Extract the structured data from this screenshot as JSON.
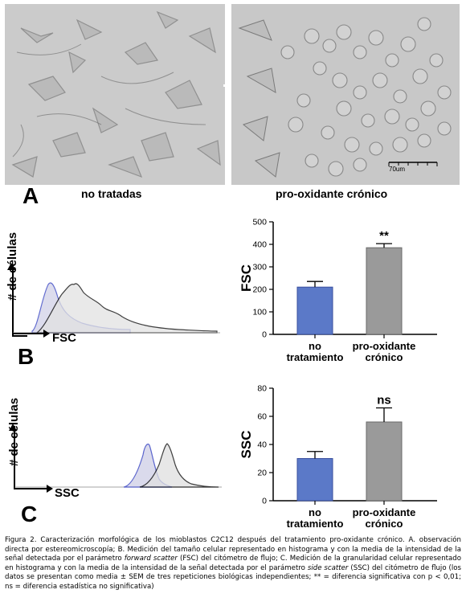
{
  "panel_a": {
    "letter": "A",
    "left_label": "no tratadas",
    "right_label": "pro-oxidante crónico",
    "scale_bar_label": "70um"
  },
  "panel_b": {
    "letter": "B",
    "hist_ylabel": "# de células",
    "hist_xlabel": "FSC"
  },
  "panel_c": {
    "letter": "C",
    "hist_ylabel": "# de células",
    "hist_xlabel": "SSC"
  },
  "colors": {
    "blue_bar": "#5b79c8",
    "gray_bar": "#9a9a9a",
    "blue_line": "#4a55c8",
    "black_line": "#000000"
  },
  "chart_data": [
    {
      "type": "bar",
      "ylabel": "FSC",
      "categories": [
        "no\ntratamiento",
        "pro-oxidante\ncrónico"
      ],
      "values": [
        210,
        385
      ],
      "errors": [
        25,
        18
      ],
      "ylim": [
        0,
        500
      ],
      "yticks": [
        "0",
        "100",
        "200",
        "300",
        "400",
        "500"
      ],
      "annotation": "**"
    },
    {
      "type": "bar",
      "ylabel": "SSC",
      "categories": [
        "no\ntratamiento",
        "pro-oxidante\ncrónico"
      ],
      "values": [
        30,
        56
      ],
      "errors": [
        5,
        10
      ],
      "ylim": [
        0,
        80
      ],
      "yticks": [
        "0",
        "20",
        "40",
        "60",
        "80"
      ],
      "annotation": "ns"
    }
  ],
  "caption": {
    "p1": "Figura 2. Caracterización morfológica de los mioblastos C2C12 después del tratamiento pro-oxidante crónico. A. observación directa por estereomicroscopía; B. Medición del tamaño celular representado en histograma y con la media de la intensidad de la señal detectada por el parámetro ",
    "i1": "forward scatter",
    "p2": " (FSC) del citómetro de flujo; C. Medición de la granularidad celular representado en histograma y con la media de la intensidad de la señal detectada por el parámetro ",
    "i2": "side scatter",
    "p3": " (SSC) del citómetro de flujo (los datos se presentan como media ± SEM de tres repeticiones biológicas independientes; ** = diferencia significativa con p < 0,01; ns = diferencia estadística no significativa)"
  }
}
